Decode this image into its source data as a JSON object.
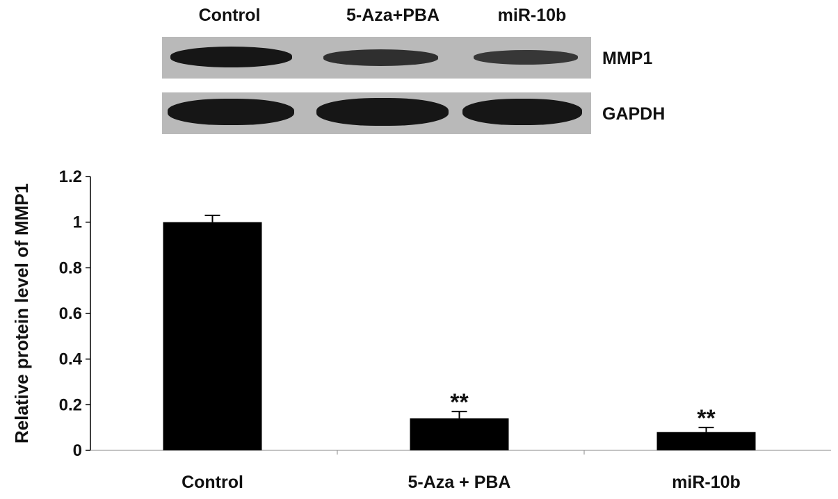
{
  "blot": {
    "lanes": [
      "Control",
      "5-Aza+PBA",
      "miR-10b"
    ],
    "rows": [
      {
        "label": "MMP1",
        "intensity": [
          1.0,
          0.6,
          0.45
        ]
      },
      {
        "label": "GAPDH",
        "intensity": [
          1.0,
          1.0,
          1.0
        ]
      }
    ]
  },
  "chart_data": {
    "type": "bar",
    "categories": [
      "Control",
      "5-Aza + PBA",
      "miR-10b"
    ],
    "values": [
      1.0,
      0.14,
      0.08
    ],
    "error": [
      0.03,
      0.03,
      0.02
    ],
    "annotations": [
      "",
      "**",
      "**"
    ],
    "ylabel": "Relative protein level of MMP1",
    "xlabel": "",
    "ylim": [
      0,
      1.2
    ],
    "yticks": [
      "0",
      "0.2",
      "0.4",
      "0.6",
      "0.8",
      "1",
      "1.2"
    ],
    "grid": false,
    "color": "#000000"
  }
}
